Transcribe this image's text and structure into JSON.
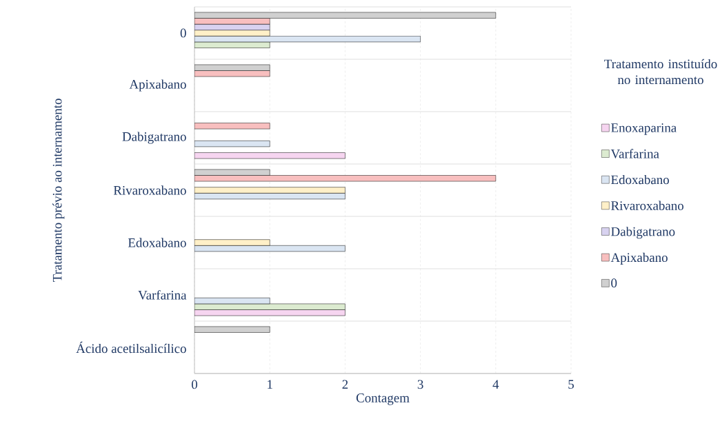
{
  "chart_data": {
    "type": "bar",
    "orientation": "horizontal",
    "xlabel": "Contagem",
    "ylabel": "Tratamento prévio ao internamento",
    "legend_title": "Tratamento instituído no internamento",
    "categories": [
      "0",
      "Apixabano",
      "Dabigatrano",
      "Rivaroxabano",
      "Edoxabano",
      "Varfarina",
      "Ácido acetilsalicílico"
    ],
    "series": [
      {
        "name": "Enoxaparina",
        "color": "#f6d5f0",
        "values": [
          null,
          null,
          2,
          null,
          null,
          2,
          null
        ]
      },
      {
        "name": "Varfarina",
        "color": "#dcebd0",
        "values": [
          1,
          null,
          null,
          null,
          null,
          2,
          null
        ]
      },
      {
        "name": "Edoxabano",
        "color": "#dae5f2",
        "values": [
          3,
          null,
          1,
          2,
          2,
          1,
          null
        ]
      },
      {
        "name": "Rivaroxabano",
        "color": "#fff0c8",
        "values": [
          1,
          null,
          null,
          2,
          1,
          null,
          null
        ]
      },
      {
        "name": "Dabigatrano",
        "color": "#d8d2f0",
        "values": [
          1,
          null,
          null,
          null,
          null,
          null,
          null
        ]
      },
      {
        "name": "Apixabano",
        "color": "#f8bfbf",
        "values": [
          1,
          1,
          1,
          4,
          null,
          null,
          null
        ]
      },
      {
        "name": "0",
        "color": "#d0d0d0",
        "values": [
          4,
          1,
          null,
          1,
          null,
          null,
          1
        ]
      }
    ],
    "xlim": [
      0,
      5
    ],
    "xticks": [
      0,
      1,
      2,
      3,
      4,
      5
    ],
    "grid": true,
    "legend": "right"
  }
}
